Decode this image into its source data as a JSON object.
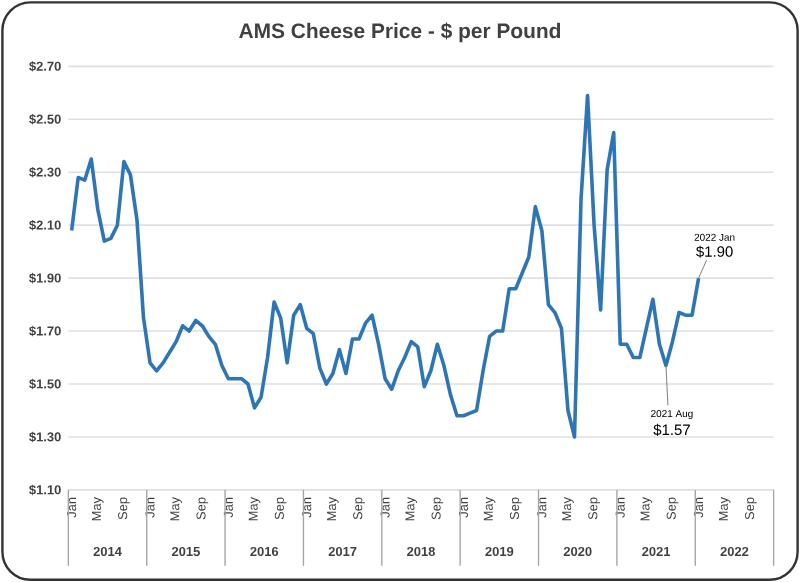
{
  "chart_data": {
    "type": "line",
    "title": "AMS Cheese Price - $ per Pound",
    "x": [
      "2014-01",
      "2014-02",
      "2014-03",
      "2014-04",
      "2014-05",
      "2014-06",
      "2014-07",
      "2014-08",
      "2014-09",
      "2014-10",
      "2014-11",
      "2014-12",
      "2015-01",
      "2015-02",
      "2015-03",
      "2015-04",
      "2015-05",
      "2015-06",
      "2015-07",
      "2015-08",
      "2015-09",
      "2015-10",
      "2015-11",
      "2015-12",
      "2016-01",
      "2016-02",
      "2016-03",
      "2016-04",
      "2016-05",
      "2016-06",
      "2016-07",
      "2016-08",
      "2016-09",
      "2016-10",
      "2016-11",
      "2016-12",
      "2017-01",
      "2017-02",
      "2017-03",
      "2017-04",
      "2017-05",
      "2017-06",
      "2017-07",
      "2017-08",
      "2017-09",
      "2017-10",
      "2017-11",
      "2017-12",
      "2018-01",
      "2018-02",
      "2018-03",
      "2018-04",
      "2018-05",
      "2018-06",
      "2018-07",
      "2018-08",
      "2018-09",
      "2018-10",
      "2018-11",
      "2018-12",
      "2019-01",
      "2019-02",
      "2019-03",
      "2019-04",
      "2019-05",
      "2019-06",
      "2019-07",
      "2019-08",
      "2019-09",
      "2019-10",
      "2019-11",
      "2019-12",
      "2020-01",
      "2020-02",
      "2020-03",
      "2020-04",
      "2020-05",
      "2020-06",
      "2020-07",
      "2020-08",
      "2020-09",
      "2020-10",
      "2020-11",
      "2020-12",
      "2021-01",
      "2021-02",
      "2021-03",
      "2021-04",
      "2021-05",
      "2021-06",
      "2021-07",
      "2021-08",
      "2021-09",
      "2021-10",
      "2021-11",
      "2021-12",
      "2022-01"
    ],
    "series": [
      {
        "color": "#2e75b6",
        "values": [
          2.08,
          2.28,
          2.27,
          2.35,
          2.16,
          2.04,
          2.05,
          2.1,
          2.34,
          2.29,
          2.12,
          1.75,
          1.58,
          1.55,
          1.58,
          1.62,
          1.66,
          1.72,
          1.7,
          1.74,
          1.72,
          1.68,
          1.65,
          1.57,
          1.52,
          1.52,
          1.52,
          1.5,
          1.41,
          1.45,
          1.6,
          1.81,
          1.75,
          1.58,
          1.76,
          1.8,
          1.71,
          1.69,
          1.56,
          1.5,
          1.54,
          1.63,
          1.54,
          1.67,
          1.67,
          1.73,
          1.76,
          1.65,
          1.52,
          1.48,
          1.55,
          1.6,
          1.66,
          1.64,
          1.49,
          1.55,
          1.65,
          1.57,
          1.46,
          1.38,
          1.38,
          1.39,
          1.4,
          1.55,
          1.68,
          1.7,
          1.7,
          1.86,
          1.86,
          1.92,
          1.98,
          2.17,
          2.08,
          1.8,
          1.77,
          1.71,
          1.4,
          1.3,
          2.2,
          2.59,
          2.1,
          1.78,
          2.31,
          2.45,
          1.65,
          1.65,
          1.6,
          1.6,
          1.71,
          1.82,
          1.65,
          1.57,
          1.66,
          1.77,
          1.76,
          1.76,
          1.9
        ]
      }
    ],
    "xlim": [
      "2013-12-16",
      "2022-12-16"
    ],
    "xticks": [
      {
        "value": "2014-01",
        "label": "Jan"
      },
      {
        "value": "2014-05",
        "label": "May"
      },
      {
        "value": "2014-09",
        "label": "Sep"
      },
      {
        "value": "2015-01",
        "label": "Jan"
      },
      {
        "value": "2015-05",
        "label": "May"
      },
      {
        "value": "2015-09",
        "label": "Sep"
      },
      {
        "value": "2016-01",
        "label": "Jan"
      },
      {
        "value": "2016-05",
        "label": "May"
      },
      {
        "value": "2016-09",
        "label": "Sep"
      },
      {
        "value": "2017-01",
        "label": "Jan"
      },
      {
        "value": "2017-05",
        "label": "May"
      },
      {
        "value": "2017-09",
        "label": "Sep"
      },
      {
        "value": "2018-01",
        "label": "Jan"
      },
      {
        "value": "2018-05",
        "label": "May"
      },
      {
        "value": "2018-09",
        "label": "Sep"
      },
      {
        "value": "2019-01",
        "label": "Jan"
      },
      {
        "value": "2019-05",
        "label": "May"
      },
      {
        "value": "2019-09",
        "label": "Sep"
      },
      {
        "value": "2020-01",
        "label": "Jan"
      },
      {
        "value": "2020-05",
        "label": "May"
      },
      {
        "value": "2020-09",
        "label": "Sep"
      },
      {
        "value": "2021-01",
        "label": "Jan"
      },
      {
        "value": "2021-05",
        "label": "May"
      },
      {
        "value": "2021-09",
        "label": "Sep"
      },
      {
        "value": "2022-01",
        "label": "Jan"
      },
      {
        "value": "2022-05",
        "label": "May"
      },
      {
        "value": "2022-09",
        "label": "Sep"
      }
    ],
    "x2lim": [
      "2013-12-16",
      "2022-12-16"
    ],
    "x2ticks": [
      {
        "value": "2014-06-16",
        "label": "2014"
      },
      {
        "value": "2015-06-16",
        "label": "2015"
      },
      {
        "value": "2016-06-16",
        "label": "2016"
      },
      {
        "value": "2017-06-16",
        "label": "2017"
      },
      {
        "value": "2018-06-16",
        "label": "2018"
      },
      {
        "value": "2019-06-16",
        "label": "2019"
      },
      {
        "value": "2020-06-16",
        "label": "2020"
      },
      {
        "value": "2021-06-16",
        "label": "2021"
      },
      {
        "value": "2022-06-16",
        "label": "2022"
      }
    ],
    "ylim": [
      1.1,
      2.7
    ],
    "yticks": [
      {
        "value": 1.1,
        "label": "$1.10"
      },
      {
        "value": 1.3,
        "label": "$1.30"
      },
      {
        "value": 1.5,
        "label": "$1.50"
      },
      {
        "value": 1.7,
        "label": "$1.70"
      },
      {
        "value": 1.9,
        "label": "$1.90"
      },
      {
        "value": 2.1,
        "label": "$2.10"
      },
      {
        "value": 2.3,
        "label": "$2.30"
      },
      {
        "value": 2.5,
        "label": "$2.50"
      },
      {
        "value": 2.7,
        "label": "$2.70"
      }
    ],
    "grid": "y",
    "annotations": [
      {
        "text": "$1.90",
        "x": "2022-01",
        "y": 1.9
      },
      "2022 Jan",
      {
        "text": "$1.57",
        "x": "2021-08",
        "y": 1.57
      },
      "2021 Aug"
    ]
  }
}
